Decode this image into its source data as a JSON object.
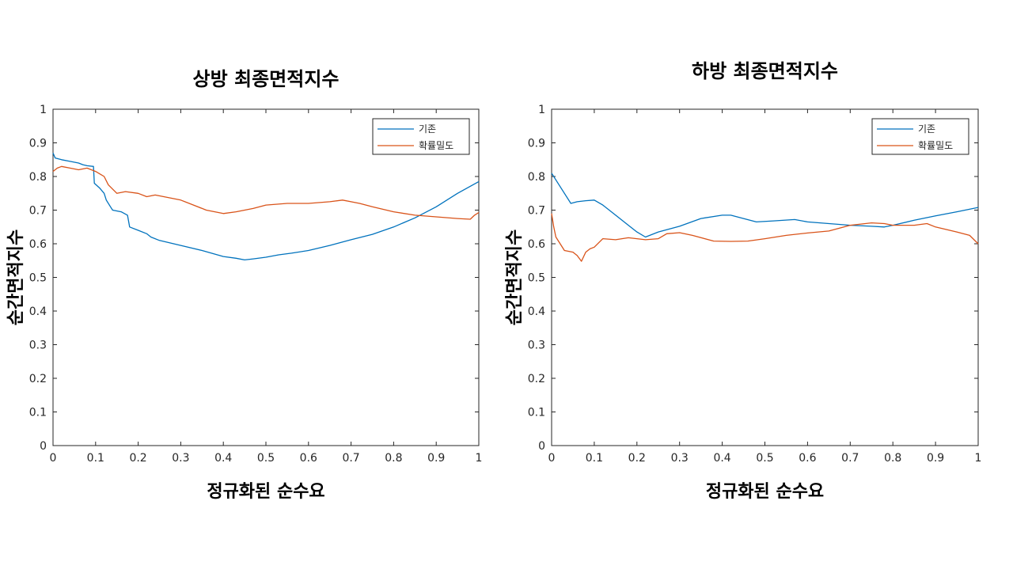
{
  "chart_data": [
    {
      "type": "line",
      "title": "상방 최종면적지수",
      "xlabel": "정규화된 순수요",
      "ylabel": "순간면적지수",
      "xlim": [
        0,
        1
      ],
      "ylim": [
        0,
        1
      ],
      "xticks": [
        "0",
        "0.1",
        "0.2",
        "0.3",
        "0.4",
        "0.5",
        "0.6",
        "0.7",
        "0.8",
        "0.9",
        "1"
      ],
      "yticks": [
        "0",
        "0.1",
        "0.2",
        "0.3",
        "0.4",
        "0.5",
        "0.6",
        "0.7",
        "0.8",
        "0.9",
        "1"
      ],
      "grid": false,
      "legend_position": "top-right",
      "series": [
        {
          "name": "기존",
          "color": "#0072BD",
          "points": [
            [
              0,
              0.87
            ],
            [
              0.005,
              0.855
            ],
            [
              0.02,
              0.85
            ],
            [
              0.04,
              0.845
            ],
            [
              0.06,
              0.84
            ],
            [
              0.07,
              0.835
            ],
            [
              0.08,
              0.832
            ],
            [
              0.095,
              0.83
            ],
            [
              0.097,
              0.78
            ],
            [
              0.11,
              0.765
            ],
            [
              0.12,
              0.75
            ],
            [
              0.125,
              0.73
            ],
            [
              0.135,
              0.71
            ],
            [
              0.14,
              0.7
            ],
            [
              0.16,
              0.695
            ],
            [
              0.175,
              0.685
            ],
            [
              0.18,
              0.65
            ],
            [
              0.2,
              0.64
            ],
            [
              0.22,
              0.63
            ],
            [
              0.23,
              0.62
            ],
            [
              0.25,
              0.61
            ],
            [
              0.3,
              0.595
            ],
            [
              0.35,
              0.58
            ],
            [
              0.4,
              0.562
            ],
            [
              0.43,
              0.557
            ],
            [
              0.45,
              0.552
            ],
            [
              0.47,
              0.555
            ],
            [
              0.5,
              0.56
            ],
            [
              0.53,
              0.567
            ],
            [
              0.56,
              0.572
            ],
            [
              0.6,
              0.58
            ],
            [
              0.65,
              0.595
            ],
            [
              0.7,
              0.612
            ],
            [
              0.75,
              0.628
            ],
            [
              0.8,
              0.65
            ],
            [
              0.85,
              0.677
            ],
            [
              0.9,
              0.71
            ],
            [
              0.95,
              0.75
            ],
            [
              1.0,
              0.785
            ]
          ]
        },
        {
          "name": "확률밀도",
          "color": "#D95319",
          "points": [
            [
              0,
              0.815
            ],
            [
              0.01,
              0.825
            ],
            [
              0.02,
              0.83
            ],
            [
              0.04,
              0.825
            ],
            [
              0.06,
              0.82
            ],
            [
              0.08,
              0.825
            ],
            [
              0.1,
              0.815
            ],
            [
              0.12,
              0.8
            ],
            [
              0.13,
              0.775
            ],
            [
              0.15,
              0.75
            ],
            [
              0.17,
              0.755
            ],
            [
              0.2,
              0.75
            ],
            [
              0.22,
              0.74
            ],
            [
              0.24,
              0.745
            ],
            [
              0.26,
              0.74
            ],
            [
              0.3,
              0.73
            ],
            [
              0.33,
              0.715
            ],
            [
              0.36,
              0.7
            ],
            [
              0.4,
              0.69
            ],
            [
              0.43,
              0.695
            ],
            [
              0.47,
              0.705
            ],
            [
              0.5,
              0.715
            ],
            [
              0.55,
              0.72
            ],
            [
              0.6,
              0.72
            ],
            [
              0.65,
              0.725
            ],
            [
              0.68,
              0.73
            ],
            [
              0.72,
              0.72
            ],
            [
              0.75,
              0.71
            ],
            [
              0.8,
              0.695
            ],
            [
              0.85,
              0.685
            ],
            [
              0.9,
              0.68
            ],
            [
              0.95,
              0.675
            ],
            [
              0.98,
              0.673
            ],
            [
              0.99,
              0.685
            ],
            [
              1.0,
              0.693
            ]
          ]
        }
      ]
    },
    {
      "type": "line",
      "title": "하방 최종면적지수",
      "xlabel": "정규화된 순수요",
      "ylabel": "순간면적지수",
      "xlim": [
        0,
        1
      ],
      "ylim": [
        0,
        1
      ],
      "xticks": [
        "0",
        "0.1",
        "0.2",
        "0.3",
        "0.4",
        "0.5",
        "0.6",
        "0.7",
        "0.8",
        "0.9",
        "1"
      ],
      "yticks": [
        "0",
        "0.1",
        "0.2",
        "0.3",
        "0.4",
        "0.5",
        "0.6",
        "0.7",
        "0.8",
        "0.9",
        "1"
      ],
      "grid": false,
      "legend_position": "top-right",
      "series": [
        {
          "name": "기존",
          "color": "#0072BD",
          "points": [
            [
              0,
              0.81
            ],
            [
              0.02,
              0.77
            ],
            [
              0.045,
              0.72
            ],
            [
              0.06,
              0.725
            ],
            [
              0.08,
              0.728
            ],
            [
              0.1,
              0.73
            ],
            [
              0.12,
              0.715
            ],
            [
              0.15,
              0.685
            ],
            [
              0.18,
              0.655
            ],
            [
              0.2,
              0.635
            ],
            [
              0.22,
              0.62
            ],
            [
              0.25,
              0.635
            ],
            [
              0.3,
              0.652
            ],
            [
              0.35,
              0.675
            ],
            [
              0.4,
              0.685
            ],
            [
              0.42,
              0.685
            ],
            [
              0.45,
              0.675
            ],
            [
              0.48,
              0.665
            ],
            [
              0.52,
              0.668
            ],
            [
              0.57,
              0.672
            ],
            [
              0.6,
              0.665
            ],
            [
              0.65,
              0.66
            ],
            [
              0.7,
              0.655
            ],
            [
              0.75,
              0.652
            ],
            [
              0.78,
              0.65
            ],
            [
              0.8,
              0.655
            ],
            [
              0.85,
              0.67
            ],
            [
              0.9,
              0.683
            ],
            [
              0.95,
              0.695
            ],
            [
              1.0,
              0.708
            ]
          ]
        },
        {
          "name": "확률밀도",
          "color": "#D95319",
          "points": [
            [
              0,
              0.69
            ],
            [
              0.005,
              0.65
            ],
            [
              0.01,
              0.62
            ],
            [
              0.02,
              0.6
            ],
            [
              0.03,
              0.58
            ],
            [
              0.05,
              0.575
            ],
            [
              0.06,
              0.565
            ],
            [
              0.07,
              0.548
            ],
            [
              0.08,
              0.575
            ],
            [
              0.09,
              0.585
            ],
            [
              0.1,
              0.59
            ],
            [
              0.12,
              0.615
            ],
            [
              0.15,
              0.612
            ],
            [
              0.18,
              0.618
            ],
            [
              0.2,
              0.615
            ],
            [
              0.22,
              0.612
            ],
            [
              0.25,
              0.615
            ],
            [
              0.27,
              0.63
            ],
            [
              0.3,
              0.633
            ],
            [
              0.33,
              0.625
            ],
            [
              0.38,
              0.608
            ],
            [
              0.42,
              0.607
            ],
            [
              0.46,
              0.608
            ],
            [
              0.5,
              0.615
            ],
            [
              0.55,
              0.625
            ],
            [
              0.6,
              0.632
            ],
            [
              0.65,
              0.638
            ],
            [
              0.7,
              0.655
            ],
            [
              0.75,
              0.662
            ],
            [
              0.78,
              0.66
            ],
            [
              0.8,
              0.655
            ],
            [
              0.85,
              0.655
            ],
            [
              0.88,
              0.66
            ],
            [
              0.9,
              0.65
            ],
            [
              0.95,
              0.635
            ],
            [
              0.98,
              0.625
            ],
            [
              1.0,
              0.6
            ]
          ]
        }
      ]
    }
  ]
}
